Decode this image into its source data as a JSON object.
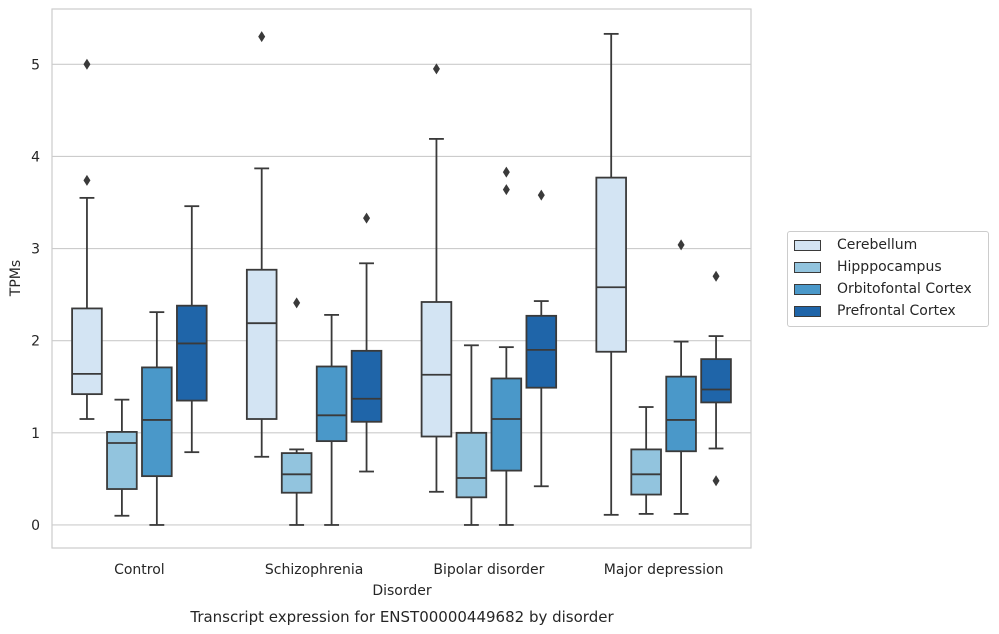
{
  "colors": {
    "axes_border": "#cccccc",
    "grid": "#cccccc",
    "box_edge": "#3a3a3a",
    "series": [
      "#d3e4f3",
      "#92c4de",
      "#4a98c9",
      "#1f65a9"
    ]
  },
  "chart_data": {
    "type": "box",
    "title": "Transcript expression for ENST00000449682 by disorder",
    "xlabel": "Disorder",
    "ylabel": "TPMs",
    "ylim": [
      -0.25,
      5.6
    ],
    "yticks": [
      0,
      1,
      2,
      3,
      4,
      5
    ],
    "grid": true,
    "legend_position": "right",
    "categories": [
      "Control",
      "Schizophrenia",
      "Bipolar disorder",
      "Major depression"
    ],
    "series": [
      {
        "name": "Cerebellum",
        "boxes": [
          {
            "whisker_low": 1.15,
            "q1": 1.42,
            "median": 1.64,
            "q3": 2.35,
            "whisker_high": 3.55,
            "outliers": [
              3.74,
              5.0
            ]
          },
          {
            "whisker_low": 0.74,
            "q1": 1.15,
            "median": 2.19,
            "q3": 2.77,
            "whisker_high": 3.87,
            "outliers": [
              5.3
            ]
          },
          {
            "whisker_low": 0.36,
            "q1": 0.96,
            "median": 1.63,
            "q3": 2.42,
            "whisker_high": 4.19,
            "outliers": [
              4.95
            ]
          },
          {
            "whisker_low": 0.11,
            "q1": 1.88,
            "median": 2.58,
            "q3": 3.77,
            "whisker_high": 5.33,
            "outliers": []
          }
        ]
      },
      {
        "name": "Hipppocampus",
        "boxes": [
          {
            "whisker_low": 0.1,
            "q1": 0.39,
            "median": 0.89,
            "q3": 1.01,
            "whisker_high": 1.36,
            "outliers": []
          },
          {
            "whisker_low": 0.0,
            "q1": 0.35,
            "median": 0.55,
            "q3": 0.78,
            "whisker_high": 0.82,
            "outliers": [
              2.41
            ]
          },
          {
            "whisker_low": 0.0,
            "q1": 0.3,
            "median": 0.51,
            "q3": 1.0,
            "whisker_high": 1.95,
            "outliers": []
          },
          {
            "whisker_low": 0.12,
            "q1": 0.33,
            "median": 0.55,
            "q3": 0.82,
            "whisker_high": 1.28,
            "outliers": []
          }
        ]
      },
      {
        "name": "Orbitofontal Cortex",
        "boxes": [
          {
            "whisker_low": 0.0,
            "q1": 0.53,
            "median": 1.14,
            "q3": 1.71,
            "whisker_high": 2.31,
            "outliers": []
          },
          {
            "whisker_low": 0.0,
            "q1": 0.91,
            "median": 1.19,
            "q3": 1.72,
            "whisker_high": 2.28,
            "outliers": []
          },
          {
            "whisker_low": 0.0,
            "q1": 0.59,
            "median": 1.15,
            "q3": 1.59,
            "whisker_high": 1.93,
            "outliers": [
              3.64,
              3.83
            ]
          },
          {
            "whisker_low": 0.12,
            "q1": 0.8,
            "median": 1.14,
            "q3": 1.61,
            "whisker_high": 1.99,
            "outliers": [
              3.04
            ]
          }
        ]
      },
      {
        "name": "Prefrontal Cortex",
        "boxes": [
          {
            "whisker_low": 0.79,
            "q1": 1.35,
            "median": 1.97,
            "q3": 2.38,
            "whisker_high": 3.46,
            "outliers": []
          },
          {
            "whisker_low": 0.58,
            "q1": 1.12,
            "median": 1.37,
            "q3": 1.89,
            "whisker_high": 2.84,
            "outliers": [
              3.33
            ]
          },
          {
            "whisker_low": 0.42,
            "q1": 1.49,
            "median": 1.9,
            "q3": 2.27,
            "whisker_high": 2.43,
            "outliers": [
              3.58
            ]
          },
          {
            "whisker_low": 0.83,
            "q1": 1.33,
            "median": 1.47,
            "q3": 1.8,
            "whisker_high": 2.05,
            "outliers": [
              0.48,
              2.7
            ]
          }
        ]
      }
    ]
  }
}
